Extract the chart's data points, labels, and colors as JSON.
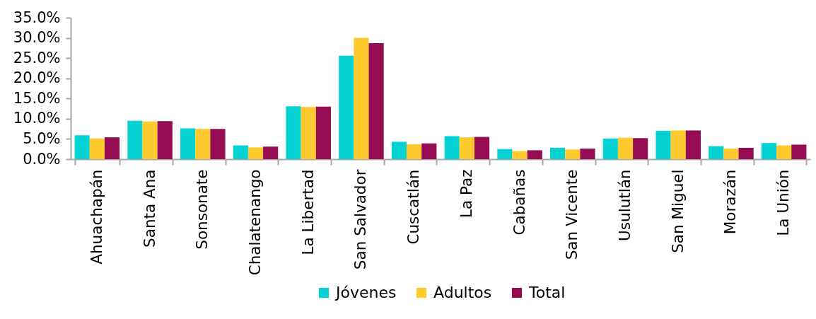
{
  "chart_data": {
    "type": "bar",
    "categories": [
      "Ahuachapán",
      "Santa Ana",
      "Sonsonate",
      "Chalatenango",
      "La Libertad",
      "San Salvador",
      "Cuscatlán",
      "La Paz",
      "Cabañas",
      "San Vicente",
      "Usulutlán",
      "San Miguel",
      "Morazán",
      "La Unión"
    ],
    "series": [
      {
        "name": "Jóvenes",
        "color": "#05d3d3",
        "values": [
          5.9,
          9.5,
          7.6,
          3.4,
          13.1,
          25.6,
          4.3,
          5.7,
          2.5,
          2.8,
          5.1,
          7.0,
          3.2,
          4.0
        ]
      },
      {
        "name": "Adultos",
        "color": "#ffca2e",
        "values": [
          5.1,
          9.3,
          7.5,
          2.9,
          12.9,
          30.0,
          3.7,
          5.4,
          2.0,
          2.4,
          5.3,
          7.1,
          2.6,
          3.4
        ]
      },
      {
        "name": "Total",
        "color": "#960c52",
        "values": [
          5.4,
          9.4,
          7.5,
          3.1,
          13.0,
          28.7,
          3.9,
          5.5,
          2.2,
          2.6,
          5.2,
          7.1,
          2.8,
          3.6
        ]
      }
    ],
    "ylim": [
      0,
      35
    ],
    "yticks": [
      {
        "value": 0,
        "label": "0.0%"
      },
      {
        "value": 5,
        "label": "5.0%"
      },
      {
        "value": 10,
        "label": "10.0%"
      },
      {
        "value": 15,
        "label": "15.0%"
      },
      {
        "value": 20,
        "label": "20.0%"
      },
      {
        "value": 25,
        "label": "25.0%"
      },
      {
        "value": 30,
        "label": "30.0%"
      },
      {
        "value": 35,
        "label": "35.0%"
      }
    ],
    "legend": "bottom"
  }
}
